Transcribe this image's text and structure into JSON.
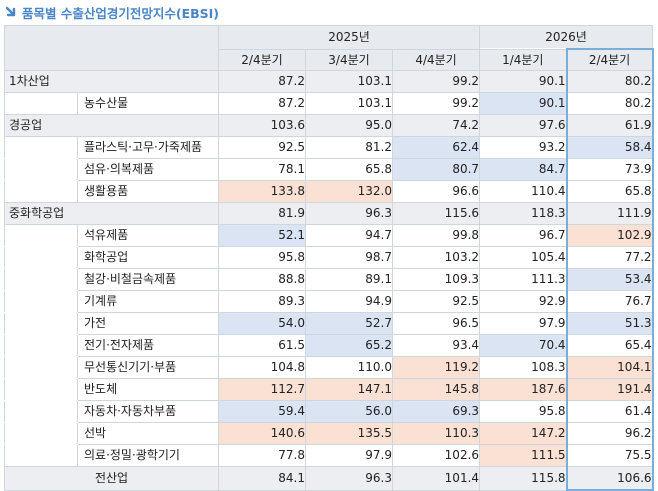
{
  "title": "품목별 수출산업경기전망지수(EBSI)",
  "colors": {
    "title": "#4a86c7",
    "blue_cell": "#dbe4f3",
    "orange_cell": "#fbe0d4",
    "highlight": "#7aaed6"
  },
  "header": {
    "years": [
      "2025년",
      "2026년"
    ],
    "quarters": [
      "2/4분기",
      "3/4분기",
      "4/4분기",
      "1/4분기",
      "2/4분기"
    ]
  },
  "rows": [
    {
      "type": "group",
      "name": "1차산업",
      "values": [
        "87.2",
        "103.1",
        "99.2",
        "90.1",
        "80.2"
      ],
      "tones": [
        "",
        "",
        "",
        "",
        ""
      ]
    },
    {
      "type": "sub",
      "name": "농수산물",
      "values": [
        "87.2",
        "103.1",
        "99.2",
        "90.1",
        "80.2"
      ],
      "tones": [
        "",
        "",
        "",
        "b",
        ""
      ]
    },
    {
      "type": "group",
      "name": "경공업",
      "values": [
        "103.6",
        "95.0",
        "74.2",
        "97.6",
        "61.9"
      ],
      "tones": [
        "",
        "",
        "",
        "",
        ""
      ]
    },
    {
      "type": "sub",
      "name": "플라스틱·고무·가죽제품",
      "values": [
        "92.5",
        "81.2",
        "62.4",
        "93.2",
        "58.4"
      ],
      "tones": [
        "",
        "",
        "b",
        "",
        "b"
      ]
    },
    {
      "type": "sub",
      "name": "섬유·의복제품",
      "values": [
        "78.1",
        "65.8",
        "80.7",
        "84.7",
        "73.9"
      ],
      "tones": [
        "",
        "",
        "b",
        "b",
        ""
      ]
    },
    {
      "type": "sub",
      "name": "생활용품",
      "values": [
        "133.8",
        "132.0",
        "96.6",
        "110.4",
        "65.8"
      ],
      "tones": [
        "o",
        "o",
        "",
        "",
        ""
      ]
    },
    {
      "type": "group",
      "name": "중화학공업",
      "values": [
        "81.9",
        "96.3",
        "115.6",
        "118.3",
        "111.9"
      ],
      "tones": [
        "",
        "",
        "",
        "",
        ""
      ]
    },
    {
      "type": "sub",
      "name": "석유제품",
      "values": [
        "52.1",
        "94.7",
        "99.8",
        "96.7",
        "102.9"
      ],
      "tones": [
        "b",
        "",
        "",
        "",
        "o"
      ]
    },
    {
      "type": "sub",
      "name": "화학공업",
      "values": [
        "95.8",
        "98.7",
        "103.2",
        "105.4",
        "77.2"
      ],
      "tones": [
        "",
        "",
        "",
        "",
        ""
      ]
    },
    {
      "type": "sub",
      "name": "철강·비철금속제품",
      "values": [
        "88.8",
        "89.1",
        "109.3",
        "111.3",
        "53.4"
      ],
      "tones": [
        "",
        "",
        "",
        "",
        "b"
      ]
    },
    {
      "type": "sub",
      "name": "기계류",
      "values": [
        "89.3",
        "94.9",
        "92.5",
        "92.9",
        "76.7"
      ],
      "tones": [
        "",
        "",
        "",
        "",
        ""
      ]
    },
    {
      "type": "sub",
      "name": "가전",
      "values": [
        "54.0",
        "52.7",
        "96.5",
        "97.9",
        "51.3"
      ],
      "tones": [
        "b",
        "b",
        "",
        "",
        "b"
      ]
    },
    {
      "type": "sub",
      "name": "전기·전자제품",
      "values": [
        "61.5",
        "65.2",
        "93.4",
        "70.4",
        "65.4"
      ],
      "tones": [
        "",
        "b",
        "",
        "b",
        ""
      ]
    },
    {
      "type": "sub",
      "name": "무선통신기기·부품",
      "values": [
        "104.8",
        "110.0",
        "119.2",
        "108.3",
        "104.1"
      ],
      "tones": [
        "",
        "",
        "o",
        "",
        "o"
      ]
    },
    {
      "type": "sub",
      "name": "반도체",
      "values": [
        "112.7",
        "147.1",
        "145.8",
        "187.6",
        "191.4"
      ],
      "tones": [
        "o",
        "o",
        "o",
        "o",
        "o"
      ]
    },
    {
      "type": "sub",
      "name": "자동차·자동차부품",
      "values": [
        "59.4",
        "56.0",
        "69.3",
        "95.8",
        "61.4"
      ],
      "tones": [
        "b",
        "b",
        "b",
        "",
        ""
      ]
    },
    {
      "type": "sub",
      "name": "선박",
      "values": [
        "140.6",
        "135.5",
        "110.3",
        "147.2",
        "96.2"
      ],
      "tones": [
        "o",
        "o",
        "o",
        "o",
        ""
      ]
    },
    {
      "type": "sub",
      "name": "의료·정밀·광학기기",
      "values": [
        "77.8",
        "97.9",
        "102.6",
        "111.5",
        "75.5"
      ],
      "tones": [
        "",
        "",
        "",
        "o",
        ""
      ]
    },
    {
      "type": "total",
      "name": "전산업",
      "values": [
        "84.1",
        "96.3",
        "101.4",
        "115.8",
        "106.6"
      ],
      "tones": [
        "",
        "",
        "",
        "",
        ""
      ]
    }
  ]
}
